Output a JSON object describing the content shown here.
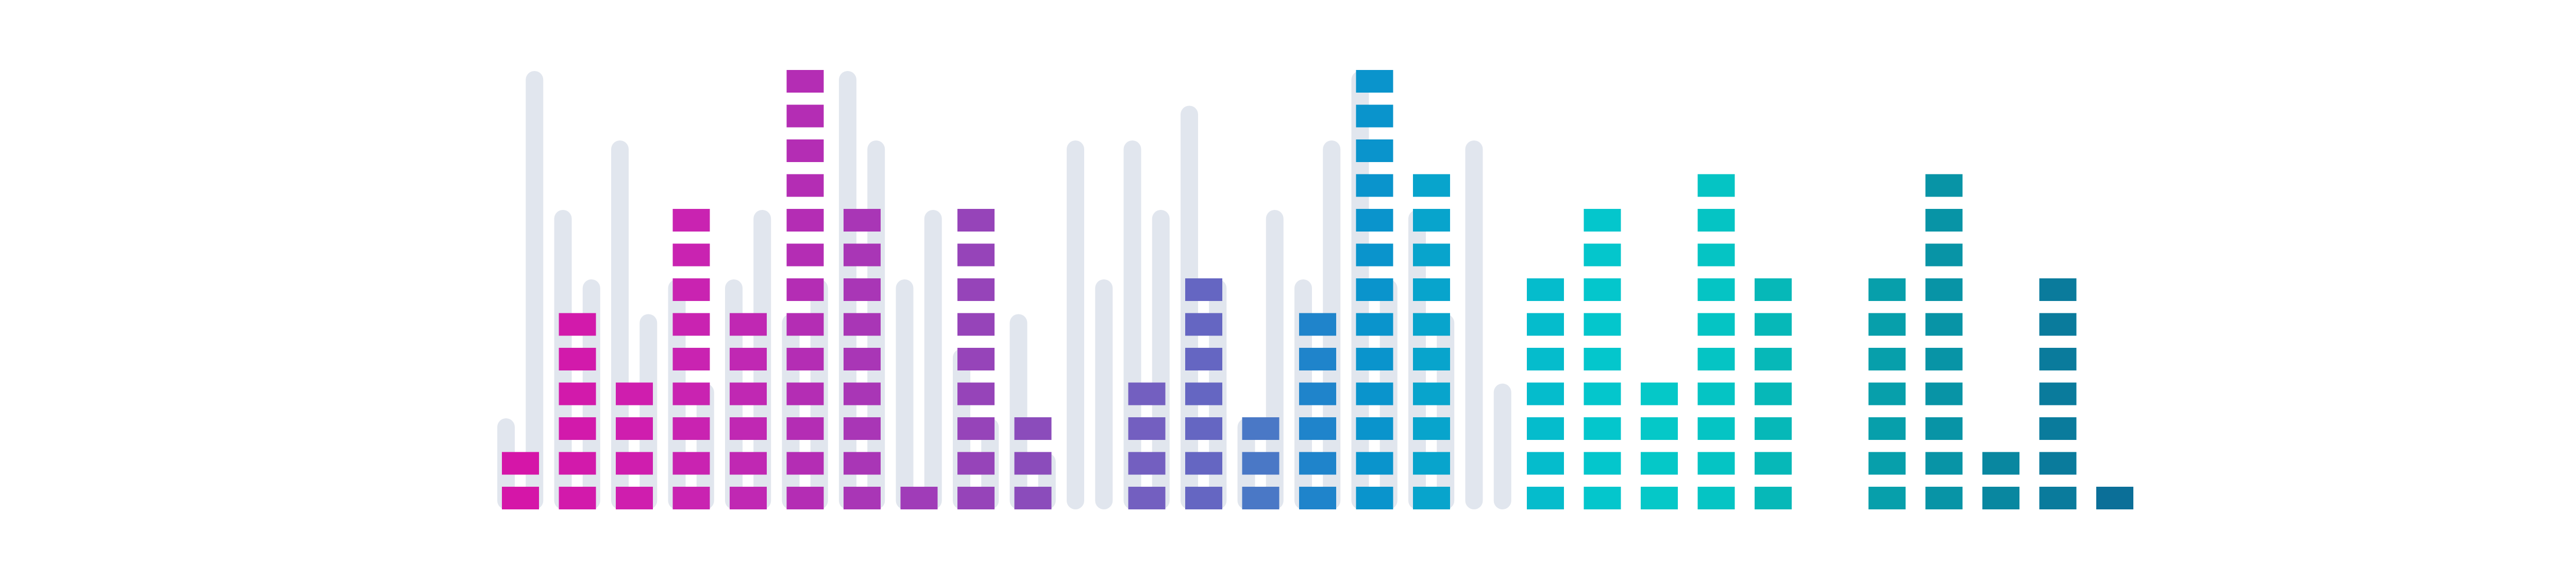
{
  "graphic": {
    "type": "equalizer",
    "total_segments": 16,
    "track_color": "#e1e6ee",
    "background_color": "#ffffff",
    "bars": [
      {
        "level": 2,
        "color": "#d516a8"
      },
      {
        "level": 6,
        "color": "#d21aab"
      },
      {
        "level": 4,
        "color": "#cf1eae"
      },
      {
        "level": 9,
        "color": "#c923b1"
      },
      {
        "level": 6,
        "color": "#c028b3"
      },
      {
        "level": 13,
        "color": "#b42db4"
      },
      {
        "level": 9,
        "color": "#a936b6"
      },
      {
        "level": 1,
        "color": "#a03cb8"
      },
      {
        "level": 9,
        "color": "#9644b9"
      },
      {
        "level": 3,
        "color": "#8b4cbb"
      },
      {
        "level": 0,
        "color": "#7e58bf"
      },
      {
        "level": 4,
        "color": "#735fc0"
      },
      {
        "level": 7,
        "color": "#6566c2"
      },
      {
        "level": 3,
        "color": "#4a78c6"
      },
      {
        "level": 6,
        "color": "#1f84cb"
      },
      {
        "level": 13,
        "color": "#0a94cc"
      },
      {
        "level": 10,
        "color": "#08a4cc"
      },
      {
        "level": 0,
        "color": "#06b0cc"
      },
      {
        "level": 7,
        "color": "#05bccc"
      },
      {
        "level": 9,
        "color": "#04c6cc"
      },
      {
        "level": 4,
        "color": "#05c8c8"
      },
      {
        "level": 10,
        "color": "#05c4c4"
      },
      {
        "level": 7,
        "color": "#06b8b8"
      },
      {
        "level": 0,
        "color": "#07a9af"
      },
      {
        "level": 7,
        "color": "#079fab"
      },
      {
        "level": 10,
        "color": "#0894a6"
      },
      {
        "level": 2,
        "color": "#0987a0"
      },
      {
        "level": 7,
        "color": "#0a7b9c"
      },
      {
        "level": 1,
        "color": "#0b6f98"
      }
    ],
    "tracks": [
      {
        "top_level": 3
      },
      {
        "top_level": 13
      },
      {
        "top_level": 9
      },
      {
        "top_level": 7
      },
      {
        "top_level": 11
      },
      {
        "top_level": 6
      },
      {
        "top_level": 7
      },
      {
        "top_level": 4
      },
      {
        "top_level": 7
      },
      {
        "top_level": 9
      },
      {
        "top_level": 6
      },
      {
        "top_level": 7
      },
      {
        "top_level": 13
      },
      {
        "top_level": 11
      },
      {
        "top_level": 7
      },
      {
        "top_level": 9
      },
      {
        "top_level": 5
      },
      {
        "top_level": 3
      },
      {
        "top_level": 6
      },
      {
        "top_level": 2
      },
      {
        "top_level": 11
      },
      {
        "top_level": 7
      },
      {
        "top_level": 11
      },
      {
        "top_level": 9
      },
      {
        "top_level": 12
      },
      {
        "top_level": 7
      },
      {
        "top_level": 3
      },
      {
        "top_level": 9
      },
      {
        "top_level": 7
      },
      {
        "top_level": 11
      },
      {
        "top_level": 13
      },
      {
        "top_level": 7
      },
      {
        "top_level": 9
      },
      {
        "top_level": 6
      },
      {
        "top_level": 11
      },
      {
        "top_level": 4
      }
    ]
  }
}
